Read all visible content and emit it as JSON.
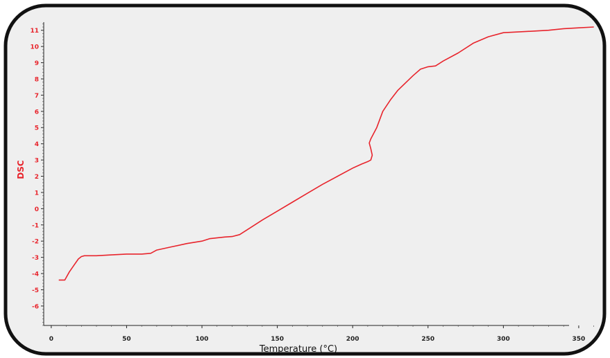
{
  "chart_data": {
    "type": "line",
    "xlabel": "Temperature (°C)",
    "ylabel": "DSC",
    "xlim": [
      -5,
      362
    ],
    "ylim": [
      -7.2,
      11.5
    ],
    "x_ticks": [
      0,
      50,
      100,
      150,
      200,
      250,
      300,
      350
    ],
    "y_ticks": [
      -6,
      -5,
      -4,
      -3,
      -2,
      -1,
      0,
      1,
      2,
      3,
      4,
      5,
      6,
      7,
      8,
      9,
      10,
      11
    ],
    "grid": false,
    "series": [
      {
        "color": "#e8242c",
        "points": [
          [
            5,
            -4.4
          ],
          [
            9,
            -4.4
          ],
          [
            12,
            -3.9
          ],
          [
            15,
            -3.5
          ],
          [
            18,
            -3.1
          ],
          [
            20,
            -2.95
          ],
          [
            22,
            -2.9
          ],
          [
            30,
            -2.9
          ],
          [
            40,
            -2.85
          ],
          [
            50,
            -2.8
          ],
          [
            60,
            -2.8
          ],
          [
            66,
            -2.75
          ],
          [
            70,
            -2.55
          ],
          [
            80,
            -2.35
          ],
          [
            90,
            -2.15
          ],
          [
            100,
            -2.0
          ],
          [
            105,
            -1.85
          ],
          [
            115,
            -1.75
          ],
          [
            120,
            -1.72
          ],
          [
            125,
            -1.6
          ],
          [
            130,
            -1.3
          ],
          [
            140,
            -0.7
          ],
          [
            150,
            -0.15
          ],
          [
            160,
            0.4
          ],
          [
            170,
            0.95
          ],
          [
            180,
            1.5
          ],
          [
            190,
            2.0
          ],
          [
            200,
            2.5
          ],
          [
            206,
            2.75
          ],
          [
            210,
            2.9
          ],
          [
            212,
            3.0
          ],
          [
            213,
            3.3
          ],
          [
            212,
            3.7
          ],
          [
            211,
            4.05
          ],
          [
            212,
            4.3
          ],
          [
            216,
            5.0
          ],
          [
            220,
            6.0
          ],
          [
            225,
            6.7
          ],
          [
            230,
            7.3
          ],
          [
            240,
            8.2
          ],
          [
            245,
            8.6
          ],
          [
            250,
            8.75
          ],
          [
            255,
            8.8
          ],
          [
            260,
            9.1
          ],
          [
            270,
            9.6
          ],
          [
            280,
            10.2
          ],
          [
            290,
            10.6
          ],
          [
            300,
            10.85
          ],
          [
            310,
            10.9
          ],
          [
            320,
            10.95
          ],
          [
            330,
            11.0
          ],
          [
            340,
            11.1
          ],
          [
            350,
            11.15
          ],
          [
            360,
            11.2
          ]
        ]
      }
    ]
  }
}
